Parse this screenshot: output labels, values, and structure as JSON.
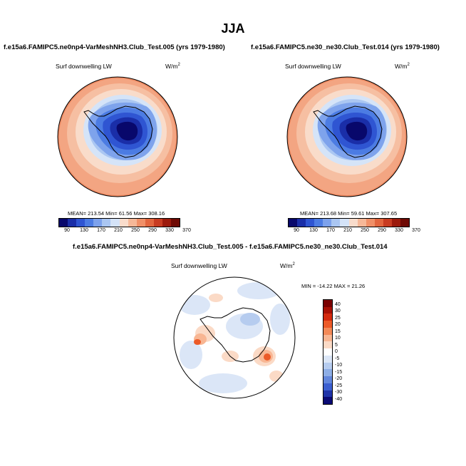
{
  "season": "JJA",
  "panels": [
    {
      "title": "f.e15a6.FAMIPC5.ne0np4-VarMeshNH3.Club_Test.005 (yrs 1979-1980)",
      "field": "Surf downwelling LW",
      "units": "W/m",
      "units_exp": "2",
      "stats": "MEAN= 213.54  Min= 61.56  Max= 308.16",
      "colorbar_ticks": [
        "90",
        "130",
        "170",
        "210",
        "250",
        "290",
        "330",
        "370"
      ]
    },
    {
      "title": "f.e15a6.FAMIPC5.ne30_ne30.Club_Test.014 (yrs 1979-1980)",
      "field": "Surf downwelling LW",
      "units": "W/m",
      "units_exp": "2",
      "stats": "MEAN= 213.68  Min= 59.61  Max= 307.65",
      "colorbar_ticks": [
        "90",
        "130",
        "170",
        "210",
        "250",
        "290",
        "330",
        "370"
      ]
    }
  ],
  "diff": {
    "title": "f.e15a6.FAMIPC5.ne0np4-VarMeshNH3.Club_Test.005 - f.e15a6.FAMIPC5.ne30_ne30.Club_Test.014",
    "field": "Surf downwelling LW",
    "units": "W/m",
    "units_exp": "2",
    "stats": "MIN = -14.22 MAX =  21.26",
    "colorbar_ticks": [
      "40",
      "30",
      "25",
      "20",
      "15",
      "10",
      "5",
      "0",
      "-5",
      "-10",
      "-15",
      "-20",
      "-25",
      "-30",
      "-40"
    ]
  },
  "colors": {
    "abs_scale": [
      "#08086b",
      "#1a2ea8",
      "#2f55d2",
      "#4c7ce3",
      "#7da2ec",
      "#aac6f2",
      "#d4e3f8",
      "#f9dccb",
      "#f6b898",
      "#f09068",
      "#e2663f",
      "#c83c22",
      "#9c1a0c",
      "#6e0a04"
    ],
    "diff_scale": [
      "#7a0000",
      "#a81004",
      "#d42a0e",
      "#ec5a28",
      "#f48a58",
      "#f8b693",
      "#fbdac6",
      "#ffffff",
      "#dbe6f7",
      "#b6ccef",
      "#8eaee6",
      "#6387dc",
      "#3c5fd0",
      "#1f33a8",
      "#0a0a74"
    ]
  }
}
